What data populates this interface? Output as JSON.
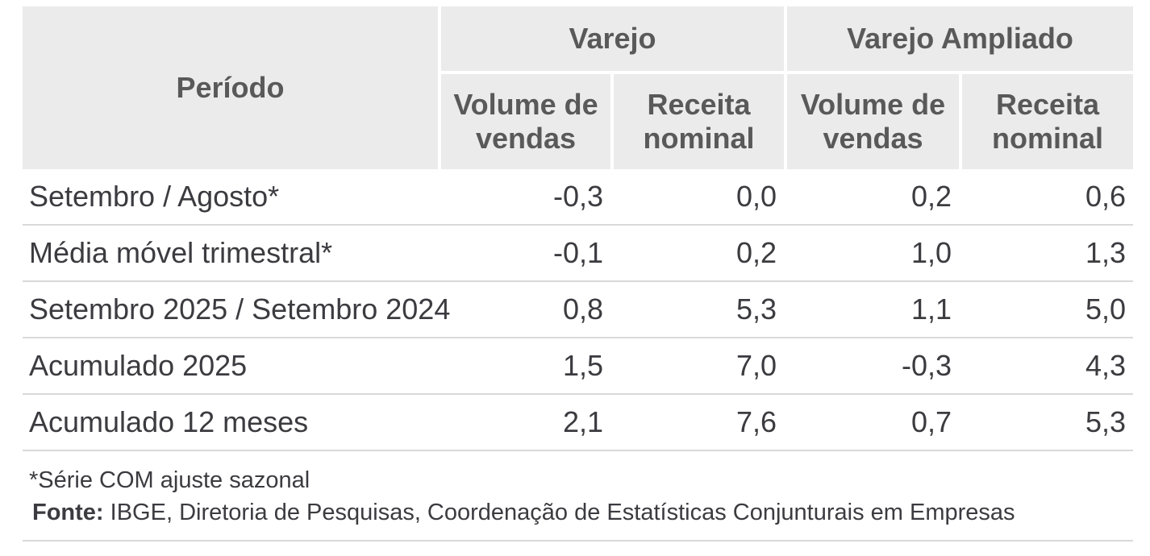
{
  "table": {
    "header": {
      "period_label": "Período",
      "groups": [
        {
          "label": "Varejo"
        },
        {
          "label": "Varejo Ampliado"
        }
      ],
      "subheaders": [
        "Volume de vendas",
        "Receita nominal",
        "Volume de vendas",
        "Receita nominal"
      ]
    },
    "rows": [
      {
        "label": "Setembro / Agosto*",
        "values": [
          "-0,3",
          "0,0",
          "0,2",
          "0,6"
        ]
      },
      {
        "label": "Média móvel trimestral*",
        "values": [
          "-0,1",
          "0,2",
          "1,0",
          "1,3"
        ]
      },
      {
        "label": "Setembro 2025 / Setembro 2024",
        "values": [
          "0,8",
          "5,3",
          "1,1",
          "5,0"
        ]
      },
      {
        "label": "Acumulado 2025",
        "values": [
          "1,5",
          "7,0",
          "-0,3",
          "4,3"
        ]
      },
      {
        "label": "Acumulado 12 meses",
        "values": [
          "2,1",
          "7,6",
          "0,7",
          "5,3"
        ]
      }
    ],
    "footnotes": {
      "note": "*Série COM ajuste sazonal",
      "source_label": "Fonte:",
      "source_text": " IBGE, Diretoria de Pesquisas, Coordenação de Estatísticas Conjunturais em Empresas"
    }
  },
  "colors": {
    "header_bg": "#ebebeb",
    "header_text": "#595959",
    "body_text": "#3b3b40",
    "divider": "#d9d9d9"
  },
  "chart_data": {
    "type": "table",
    "title": "",
    "column_groups": [
      "Período",
      "Varejo",
      "Varejo",
      "Varejo Ampliado",
      "Varejo Ampliado"
    ],
    "columns": [
      "Período",
      "Varejo - Volume de vendas",
      "Varejo - Receita nominal",
      "Varejo Ampliado - Volume de vendas",
      "Varejo Ampliado - Receita nominal"
    ],
    "rows": [
      [
        "Setembro / Agosto*",
        -0.3,
        0.0,
        0.2,
        0.6
      ],
      [
        "Média móvel trimestral*",
        -0.1,
        0.2,
        1.0,
        1.3
      ],
      [
        "Setembro 2025 / Setembro 2024",
        0.8,
        5.3,
        1.1,
        5.0
      ],
      [
        "Acumulado 2025",
        1.5,
        7.0,
        -0.3,
        4.3
      ],
      [
        "Acumulado 12 meses",
        2.1,
        7.6,
        0.7,
        5.3
      ]
    ],
    "notes": [
      "*Série COM ajuste sazonal",
      "Fonte: IBGE, Diretoria de Pesquisas, Coordenação de Estatísticas Conjunturais em Empresas"
    ]
  }
}
